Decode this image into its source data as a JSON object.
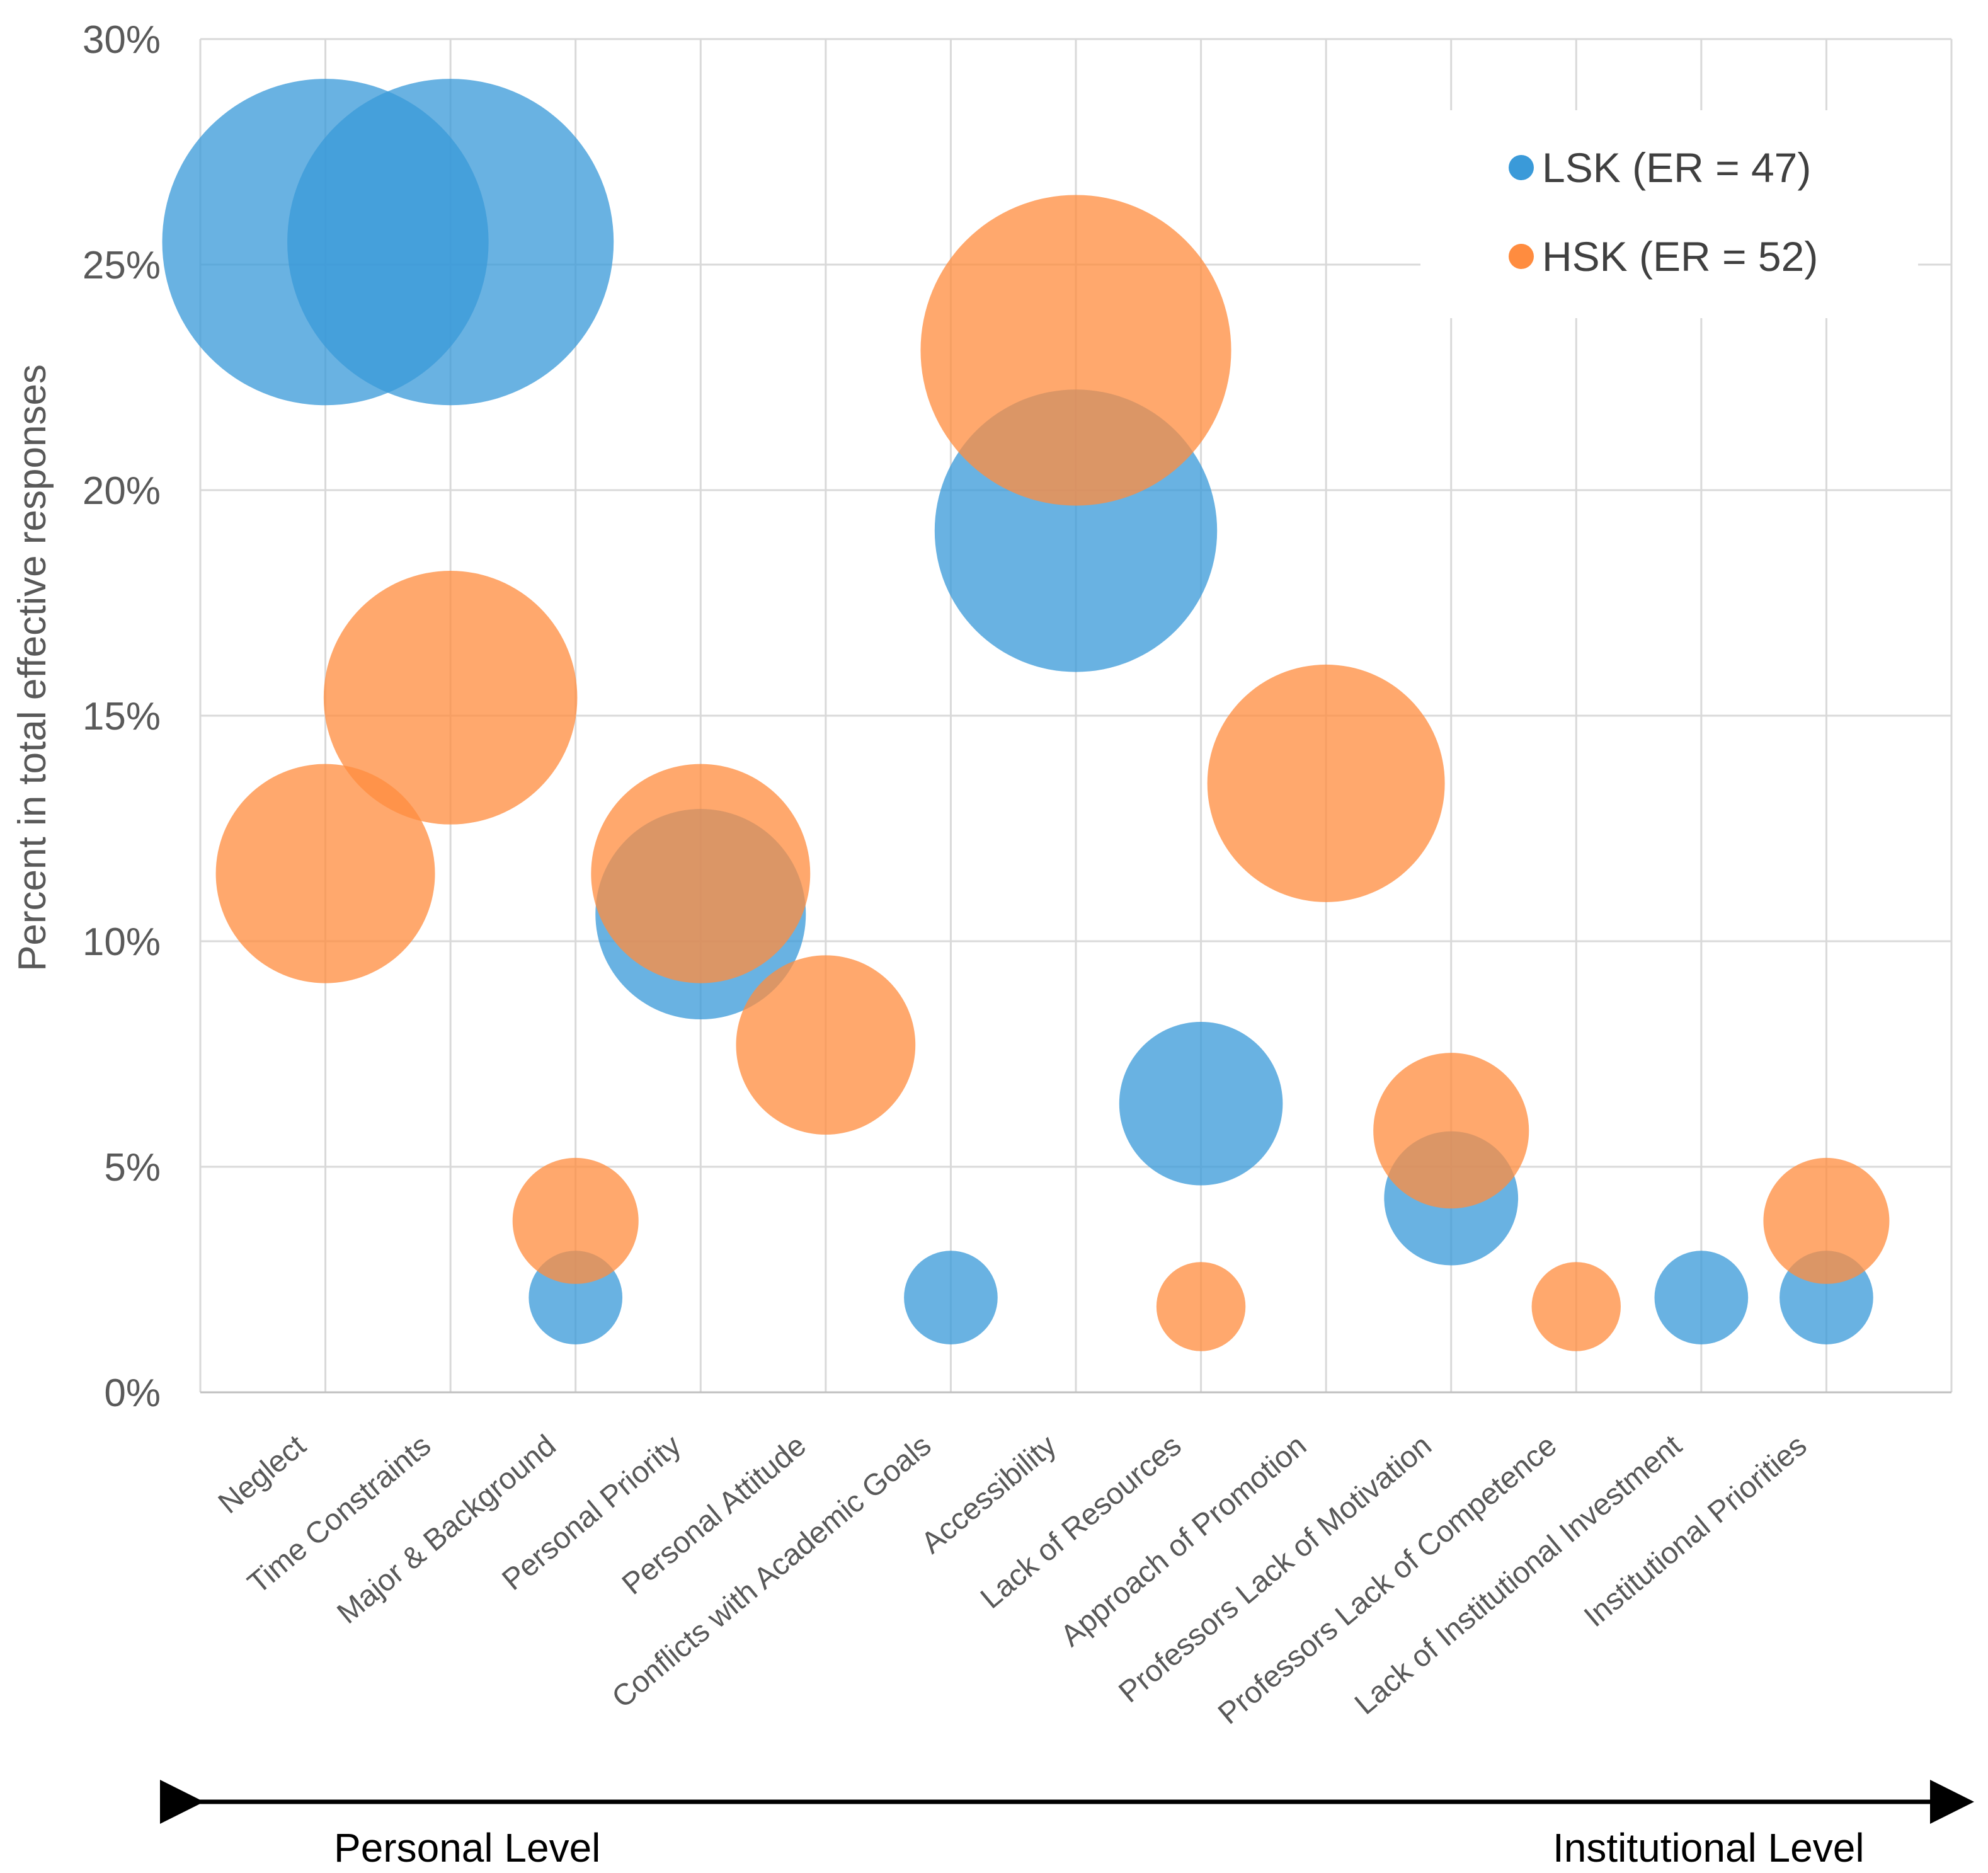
{
  "chart_data": {
    "type": "bubble",
    "ylabel": "Percent in total effective responses",
    "ylim": [
      0,
      30
    ],
    "yticks": [
      "0%",
      "5%",
      "10%",
      "15%",
      "20%",
      "25%",
      "30%"
    ],
    "grid": true,
    "categories": [
      "Neglect",
      "Time Constraints",
      "Major & Background",
      "Personal Priority",
      "Personal Attitude",
      "Conflicts with Academic Goals",
      "Accessibility",
      "Lack of Resources",
      "Approach of Promotion",
      "Professors Lack of Motivation",
      "Professors Lack of Competence",
      "Lack of Institutional Investment",
      "Institutional Priorities"
    ],
    "legend_position": "top-right",
    "series": [
      {
        "name": "LSK (ER = 47)",
        "color": "#3a9ad9",
        "points": [
          {
            "category": "Neglect",
            "value": 25.5
          },
          {
            "category": "Time Constraints",
            "value": 25.5
          },
          {
            "category": "Major & Background",
            "value": 2.1
          },
          {
            "category": "Personal Priority",
            "value": 10.6
          },
          {
            "category": "Conflicts with Academic Goals",
            "value": 2.1
          },
          {
            "category": "Accessibility",
            "value": 19.1
          },
          {
            "category": "Lack of Resources",
            "value": 6.4
          },
          {
            "category": "Professors Lack of Motivation",
            "value": 4.3
          },
          {
            "category": "Lack of Institutional Investment",
            "value": 2.1
          },
          {
            "category": "Institutional Priorities",
            "value": 2.1
          }
        ]
      },
      {
        "name": "HSK (ER = 52)",
        "color": "#ff8c3f",
        "points": [
          {
            "category": "Neglect",
            "value": 11.5
          },
          {
            "category": "Time Constraints",
            "value": 15.4
          },
          {
            "category": "Major & Background",
            "value": 3.8
          },
          {
            "category": "Personal Priority",
            "value": 11.5
          },
          {
            "category": "Personal Attitude",
            "value": 7.7
          },
          {
            "category": "Accessibility",
            "value": 23.1
          },
          {
            "category": "Lack of Resources",
            "value": 1.9
          },
          {
            "category": "Approach of Promotion",
            "value": 13.5
          },
          {
            "category": "Professors Lack of Motivation",
            "value": 5.8
          },
          {
            "category": "Professors Lack of Competence",
            "value": 1.9
          },
          {
            "category": "Institutional Priorities",
            "value": 3.8
          }
        ]
      }
    ],
    "level_axis": {
      "left_label": "Personal Level",
      "right_label": "Institutional Level"
    }
  }
}
